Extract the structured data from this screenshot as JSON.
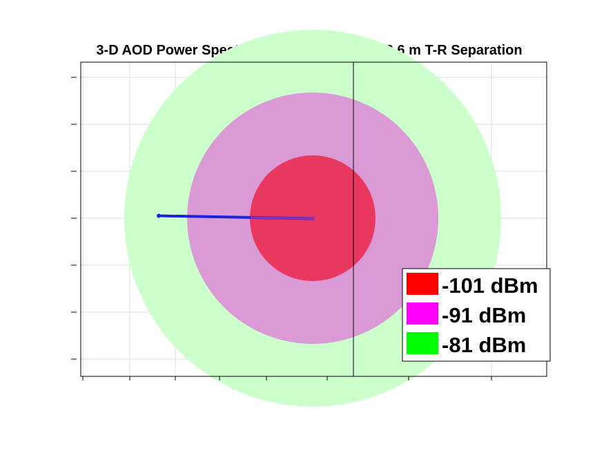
{
  "chart_data": {
    "type": "polar-contour",
    "title": "3-D AOD Power Spectrum - 6 GHz, NLOS, 109.6 m T-R Separation",
    "xlabel": "",
    "ylabel": "",
    "grid": true,
    "legend_placement": "bottom-right",
    "series": [
      {
        "name": "-101 dBm",
        "color": "#e8385f",
        "legend_color": "#ff0000",
        "ring_level": 1
      },
      {
        "name": "-91 dBm",
        "color": "#d99ad6",
        "legend_color": "#ff00ff",
        "ring_level": 2
      },
      {
        "name": "-81 dBm",
        "color": "#ccffcc",
        "legend_color": "#00ff00",
        "ring_level": 3
      }
    ],
    "arrival_lobe": {
      "color": "#1f1fdc",
      "tip_color": "#8a32b8",
      "direction": "left",
      "length_in_rings": 2.45
    }
  }
}
